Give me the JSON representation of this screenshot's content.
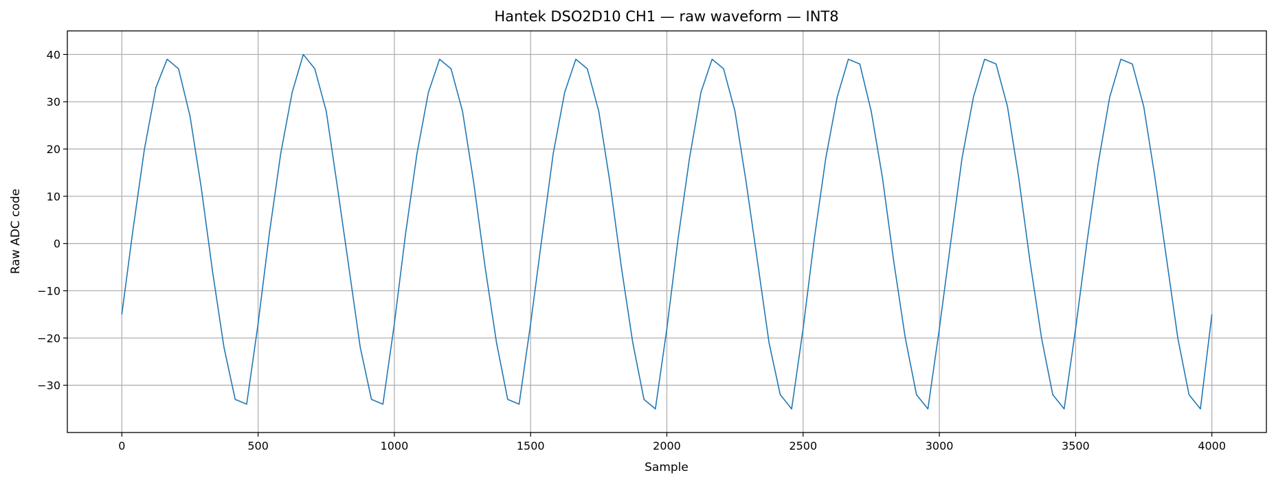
{
  "chart_data": {
    "type": "line",
    "title": "Hantek DSO2D10 CH1 — raw waveform — INT8",
    "xlabel": "Sample",
    "ylabel": "Raw ADC code",
    "xlim": [
      -200,
      4200
    ],
    "ylim": [
      -40,
      45
    ],
    "xticks": [
      0,
      500,
      1000,
      1500,
      2000,
      2500,
      3000,
      3500,
      4000
    ],
    "yticks": [
      -30,
      -20,
      -10,
      0,
      10,
      20,
      30,
      40
    ],
    "xtick_labels": [
      "0",
      "500",
      "1000",
      "1500",
      "2000",
      "2500",
      "3000",
      "3500",
      "4000"
    ],
    "ytick_labels": [
      "−30",
      "−20",
      "−10",
      "0",
      "10",
      "20",
      "30",
      "40"
    ],
    "grid": true,
    "color": "#1f77b4",
    "series": [
      {
        "x": [
          0,
          41,
          83,
          125,
          166,
          208,
          250,
          291,
          333,
          375,
          416,
          458,
          500,
          541,
          583,
          625,
          666,
          708,
          750,
          791,
          833,
          875,
          916,
          958,
          1000,
          1041,
          1083,
          1125,
          1166,
          1208,
          1250,
          1291,
          1333,
          1375,
          1416,
          1458,
          1500,
          1541,
          1583,
          1625,
          1666,
          1708,
          1750,
          1791,
          1833,
          1875,
          1916,
          1958,
          2000,
          2041,
          2083,
          2125,
          2166,
          2208,
          2250,
          2291,
          2333,
          2375,
          2416,
          2458,
          2500,
          2541,
          2583,
          2625,
          2666,
          2708,
          2750,
          2791,
          2833,
          2875,
          2916,
          2958,
          3000,
          3041,
          3083,
          3125,
          3166,
          3208,
          3250,
          3291,
          3333,
          3375,
          3416,
          3458,
          3500,
          3541,
          3583,
          3625,
          3666,
          3708,
          3750,
          3791,
          3833,
          3875,
          3916,
          3958,
          4000
        ],
        "values": [
          -15,
          3,
          20,
          33,
          39,
          37,
          27,
          12,
          -6,
          -22,
          -33,
          -34,
          -17,
          2,
          19,
          32,
          40,
          37,
          28,
          12,
          -5,
          -22,
          -33,
          -34,
          -17,
          2,
          19,
          32,
          39,
          37,
          28,
          13,
          -5,
          -21,
          -33,
          -34,
          -17,
          1,
          19,
          32,
          39,
          37,
          28,
          13,
          -5,
          -21,
          -33,
          -35,
          -18,
          1,
          18,
          32,
          39,
          37,
          28,
          13,
          -4,
          -21,
          -32,
          -35,
          -18,
          1,
          18,
          31,
          39,
          38,
          28,
          14,
          -4,
          -20,
          -32,
          -35,
          -18,
          0,
          18,
          31,
          39,
          38,
          29,
          14,
          -4,
          -20,
          -32,
          -35,
          -18,
          0,
          17,
          31,
          39,
          38,
          29,
          14,
          -3,
          -20,
          -32,
          -35,
          -15
        ]
      }
    ]
  }
}
